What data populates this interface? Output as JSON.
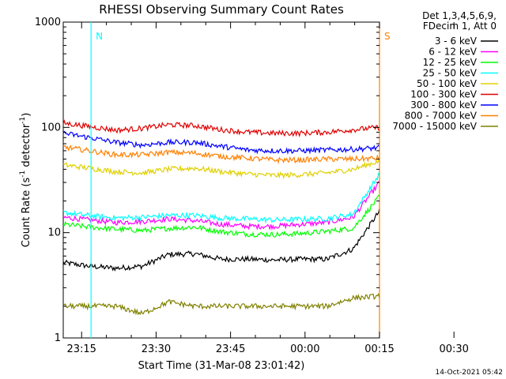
{
  "chart_data": {
    "type": "line",
    "title": "RHESSI Observing Summary Count Rates",
    "xlabel": "Start Time (31-Mar-08 23:01:42)",
    "ylabel_main": "Count Rate (s",
    "ylabel_sup1": "-1",
    "ylabel_mid": " detector",
    "ylabel_sup2": "-1",
    "ylabel_end": ")",
    "y_scale": "log",
    "ylim": [
      1,
      1000
    ],
    "x_range_minutes": [
      -18.7,
      45
    ],
    "x_ticks": [
      {
        "t": -15,
        "label": "23:15"
      },
      {
        "t": 0,
        "label": "23:30"
      },
      {
        "t": 15,
        "label": "23:45"
      },
      {
        "t": 30,
        "label": "00:00"
      },
      {
        "t": 45,
        "label": "00:15"
      },
      {
        "t": 60,
        "label": "00:30"
      }
    ],
    "y_ticks": [
      {
        "v": 1,
        "label": "1"
      },
      {
        "v": 10,
        "label": "10"
      },
      {
        "v": 100,
        "label": "100"
      },
      {
        "v": 1000,
        "label": "1000"
      }
    ],
    "legend": {
      "placement": "right",
      "header_line1": "Det 1,3,4,5,6,9,",
      "header_line2": "FDecim 1, Att 0"
    },
    "markers": [
      {
        "label": "N",
        "color": "#00ffff",
        "t": -13.1
      },
      {
        "label": "S",
        "color": "#ff8000",
        "t": 45
      }
    ],
    "series": [
      {
        "name": "3 - 6 keV",
        "color": "#000000",
        "values": [
          5.2,
          4.8,
          4.6,
          4.8,
          6.2,
          6.3,
          5.6,
          5.6,
          5.5,
          5.6,
          5.6,
          7,
          16
        ]
      },
      {
        "name": "6 - 12 keV",
        "color": "#ff00ff",
        "values": [
          14,
          13.2,
          12.5,
          12.8,
          13.5,
          13,
          12,
          11.5,
          11.5,
          12,
          12.5,
          14,
          30
        ]
      },
      {
        "name": "12 - 25 keV",
        "color": "#00ff00",
        "values": [
          12,
          11.3,
          10.8,
          10.5,
          11,
          11.3,
          10.2,
          9.7,
          9.6,
          9.8,
          10.3,
          11,
          22
        ]
      },
      {
        "name": "25 - 50 keV",
        "color": "#00ffff",
        "values": [
          15.5,
          14.5,
          13.8,
          14,
          14.6,
          14.6,
          13.8,
          13.5,
          13.2,
          13.4,
          13.6,
          15,
          36
        ]
      },
      {
        "name": "50 - 100 keV",
        "color": "#e0d000",
        "values": [
          44,
          41,
          38,
          37,
          40,
          41,
          38,
          36,
          35,
          35.5,
          37,
          40,
          48
        ]
      },
      {
        "name": "100 - 300 keV",
        "color": "#e00000",
        "values": [
          110,
          102,
          94,
          98,
          106,
          104,
          95,
          90,
          88,
          88,
          90,
          95,
          100
        ]
      },
      {
        "name": "300 - 800 keV",
        "color": "#0000ff",
        "values": [
          88,
          80,
          72,
          68,
          72,
          72,
          66,
          61,
          60,
          60,
          61,
          62,
          64
        ]
      },
      {
        "name": "800 - 7000 keV",
        "color": "#ff8000",
        "values": [
          65,
          60,
          55,
          55,
          58,
          57,
          53,
          51,
          49,
          49,
          50,
          50,
          51
        ]
      },
      {
        "name": "7000 - 15000 keV",
        "color": "#808000",
        "values": [
          2.0,
          2.0,
          2.0,
          1.7,
          2.2,
          2.0,
          2.0,
          2.0,
          2.0,
          2.0,
          2.0,
          2.4,
          2.5
        ]
      }
    ]
  },
  "timestamp": "14-Oct-2021 05:42"
}
